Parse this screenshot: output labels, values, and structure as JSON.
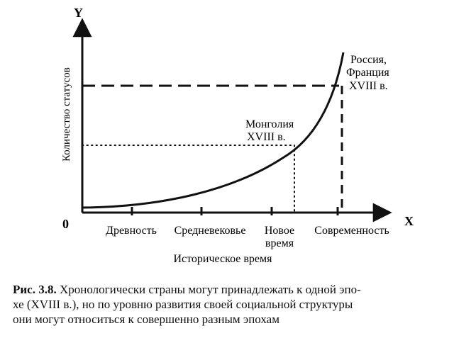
{
  "figure": {
    "axis_y_label": "Y",
    "axis_x_label": "X",
    "origin_label": "0",
    "ylabel": "Количество статусов",
    "xlabel": "Историческое время",
    "ticks": [
      {
        "text_lines": [
          "Древность"
        ]
      },
      {
        "text_lines": [
          "Средневековье"
        ]
      },
      {
        "text_lines": [
          "Новое",
          "время"
        ]
      },
      {
        "text_lines": [
          "Современность"
        ]
      }
    ],
    "annotations": [
      {
        "id": "mongolia",
        "text_lines": [
          "Монголия",
          "XVIII в."
        ]
      },
      {
        "id": "russia-france",
        "text_lines": [
          "Россия,",
          "Франция",
          "XVIII в."
        ]
      }
    ]
  },
  "caption": {
    "label": "Рис. 3.8.",
    "lines": [
      "Хронологически страны могут принадлежать к одной эпо-",
      "хе (XVIII в.), но по уровню развития своей социальной структуры",
      "они могут относиться к совершенно разным эпохам"
    ]
  }
}
